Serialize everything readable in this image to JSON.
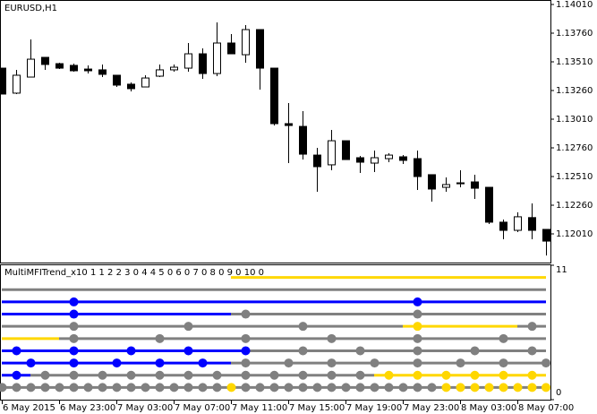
{
  "chart_data": [
    {
      "type": "candlestick",
      "title": "EURUSD,H1",
      "categories": [
        "6 May 2015",
        null,
        null,
        null,
        "6 May 23:00",
        null,
        null,
        null,
        "7 May 03:00",
        null,
        null,
        null,
        "7 May 07:00",
        null,
        null,
        null,
        "7 May 11:00",
        null,
        null,
        null,
        "7 May 15:00",
        null,
        null,
        null,
        "7 May 19:00",
        null,
        null,
        null,
        "7 May 23:00",
        null,
        null,
        null,
        "8 May 03:00",
        null,
        null,
        null,
        "8 May 07:00",
        null,
        null
      ],
      "open": [
        1.13455,
        1.13237,
        1.13377,
        1.13549,
        1.13494,
        1.13479,
        1.13447,
        1.1344,
        1.13393,
        1.13315,
        1.13291,
        1.13385,
        1.1344,
        1.13455,
        1.1358,
        1.13408,
        1.13674,
        1.13572,
        1.13791,
        1.13455,
        1.12971,
        1.12947,
        1.12697,
        1.12612,
        1.12822,
        1.12674,
        1.12627,
        1.12666,
        1.12682,
        1.12666,
        1.12526,
        1.12416,
        1.12447,
        1.12463,
        1.12416,
        1.12112,
        1.12041,
        1.12152,
        1.12049
      ],
      "high": [
        1.13455,
        1.1344,
        1.13705,
        1.13549,
        1.13502,
        1.13494,
        1.13479,
        1.13487,
        1.13393,
        1.1333,
        1.13393,
        1.13487,
        1.13487,
        1.13674,
        1.13627,
        1.13854,
        1.13752,
        1.1383,
        1.13791,
        1.13455,
        1.13151,
        1.1308,
        1.1276,
        1.12916,
        1.12822,
        1.1269,
        1.12737,
        1.12713,
        1.12697,
        1.12737,
        1.12526,
        1.12502,
        1.12565,
        1.12526,
        1.12416,
        1.12135,
        1.12198,
        1.12276,
        1.12049
      ],
      "low": [
        1.13229,
        1.13229,
        1.13377,
        1.1344,
        1.13447,
        1.13424,
        1.13408,
        1.13377,
        1.13291,
        1.13252,
        1.13291,
        1.13377,
        1.13424,
        1.13424,
        1.13362,
        1.13385,
        1.1358,
        1.13502,
        1.13268,
        1.12955,
        1.12627,
        1.12658,
        1.12377,
        1.12565,
        1.12658,
        1.12541,
        1.12549,
        1.12635,
        1.12619,
        1.12393,
        1.12291,
        1.12377,
        1.12416,
        1.12315,
        1.12096,
        1.11963,
        1.12026,
        1.11963,
        1.11822
      ],
      "close": [
        1.13229,
        1.13393,
        1.13533,
        1.13487,
        1.13455,
        1.13432,
        1.13432,
        1.13401,
        1.13307,
        1.13276,
        1.13369,
        1.1344,
        1.13463,
        1.1358,
        1.13408,
        1.13674,
        1.1358,
        1.13791,
        1.13455,
        1.12971,
        1.12955,
        1.12705,
        1.12596,
        1.12822,
        1.12658,
        1.12635,
        1.12674,
        1.12697,
        1.12651,
        1.1251,
        1.12401,
        1.1244,
        1.12455,
        1.12408,
        1.12112,
        1.12041,
        1.12159,
        1.12041,
        1.11947
      ],
      "up_color": "#ffffff",
      "down_color": "#000000",
      "wick_color": "#000000",
      "ylim": [
        1.1176,
        1.14049
      ],
      "yticks": [
        {
          "value": 1.1401,
          "label": "1.14010"
        },
        {
          "value": 1.1376,
          "label": "1.13760"
        },
        {
          "value": 1.1351,
          "label": "1.13510"
        },
        {
          "value": 1.1326,
          "label": "1.13260"
        },
        {
          "value": 1.1301,
          "label": "1.13010"
        },
        {
          "value": 1.1276,
          "label": "1.12760"
        },
        {
          "value": 1.1251,
          "label": "1.12510"
        },
        {
          "value": 1.1226,
          "label": "1.12260"
        },
        {
          "value": 1.1201,
          "label": "1.12010"
        }
      ]
    },
    {
      "type": "levels",
      "title": "MultiMFITrend_x10 1 1 2 2 3 0 4 4 5 0 6 0 7 0 8 0 9 0 10 0",
      "ylim": [
        0,
        11
      ],
      "yticks": [
        11,
        0
      ],
      "rows": [
        {
          "value": 1,
          "segments": [
            {
              "from": 0,
              "to": 38,
              "color": "#808080"
            }
          ],
          "dots": [
            {
              "at": 0,
              "color": "#808080"
            },
            {
              "at": 1,
              "color": "#808080"
            },
            {
              "at": 2,
              "color": "#808080"
            },
            {
              "at": 3,
              "color": "#808080"
            },
            {
              "at": 4,
              "color": "#808080"
            },
            {
              "at": 5,
              "color": "#808080"
            },
            {
              "at": 6,
              "color": "#808080"
            },
            {
              "at": 7,
              "color": "#808080"
            },
            {
              "at": 8,
              "color": "#808080"
            },
            {
              "at": 9,
              "color": "#808080"
            },
            {
              "at": 10,
              "color": "#808080"
            },
            {
              "at": 11,
              "color": "#808080"
            },
            {
              "at": 12,
              "color": "#808080"
            },
            {
              "at": 13,
              "color": "#808080"
            },
            {
              "at": 14,
              "color": "#808080"
            },
            {
              "at": 15,
              "color": "#808080"
            },
            {
              "at": 16,
              "color": "#ffd700"
            },
            {
              "at": 17,
              "color": "#808080"
            },
            {
              "at": 18,
              "color": "#808080"
            },
            {
              "at": 19,
              "color": "#808080"
            },
            {
              "at": 20,
              "color": "#808080"
            },
            {
              "at": 21,
              "color": "#808080"
            },
            {
              "at": 22,
              "color": "#808080"
            },
            {
              "at": 23,
              "color": "#808080"
            },
            {
              "at": 24,
              "color": "#808080"
            },
            {
              "at": 25,
              "color": "#808080"
            },
            {
              "at": 26,
              "color": "#808080"
            },
            {
              "at": 27,
              "color": "#808080"
            },
            {
              "at": 28,
              "color": "#808080"
            },
            {
              "at": 29,
              "color": "#808080"
            },
            {
              "at": 30,
              "color": "#808080"
            },
            {
              "at": 31,
              "color": "#ffd700"
            },
            {
              "at": 32,
              "color": "#ffd700"
            },
            {
              "at": 33,
              "color": "#ffd700"
            },
            {
              "at": 34,
              "color": "#ffd700"
            },
            {
              "at": 35,
              "color": "#ffd700"
            },
            {
              "at": 36,
              "color": "#ffd700"
            },
            {
              "at": 37,
              "color": "#ffd700"
            },
            {
              "at": 38,
              "color": "#ffd700"
            }
          ]
        },
        {
          "value": 2,
          "segments": [
            {
              "from": 0,
              "to": 2,
              "color": "#0000ff"
            },
            {
              "from": 2,
              "to": 26,
              "color": "#808080"
            },
            {
              "from": 26,
              "to": 38,
              "color": "#ffd700"
            }
          ],
          "dots": [
            {
              "at": 1,
              "color": "#0000ff"
            },
            {
              "at": 3,
              "color": "#808080"
            },
            {
              "at": 5,
              "color": "#808080"
            },
            {
              "at": 7,
              "color": "#808080"
            },
            {
              "at": 9,
              "color": "#808080"
            },
            {
              "at": 11,
              "color": "#808080"
            },
            {
              "at": 13,
              "color": "#808080"
            },
            {
              "at": 15,
              "color": "#808080"
            },
            {
              "at": 17,
              "color": "#808080"
            },
            {
              "at": 19,
              "color": "#808080"
            },
            {
              "at": 21,
              "color": "#808080"
            },
            {
              "at": 23,
              "color": "#808080"
            },
            {
              "at": 25,
              "color": "#808080"
            },
            {
              "at": 27,
              "color": "#ffd700"
            },
            {
              "at": 29,
              "color": "#ffd700"
            },
            {
              "at": 31,
              "color": "#ffd700"
            },
            {
              "at": 33,
              "color": "#ffd700"
            },
            {
              "at": 35,
              "color": "#ffd700"
            },
            {
              "at": 37,
              "color": "#ffd700"
            }
          ]
        },
        {
          "value": 3,
          "segments": [
            {
              "from": 0,
              "to": 16,
              "color": "#0000ff"
            },
            {
              "from": 16,
              "to": 38,
              "color": "#808080"
            }
          ],
          "dots": [
            {
              "at": 2,
              "color": "#0000ff"
            },
            {
              "at": 5,
              "color": "#0000ff"
            },
            {
              "at": 8,
              "color": "#0000ff"
            },
            {
              "at": 11,
              "color": "#0000ff"
            },
            {
              "at": 14,
              "color": "#0000ff"
            },
            {
              "at": 17,
              "color": "#808080"
            },
            {
              "at": 20,
              "color": "#808080"
            },
            {
              "at": 23,
              "color": "#808080"
            },
            {
              "at": 26,
              "color": "#808080"
            },
            {
              "at": 29,
              "color": "#808080"
            },
            {
              "at": 32,
              "color": "#808080"
            },
            {
              "at": 35,
              "color": "#808080"
            },
            {
              "at": 38,
              "color": "#808080"
            }
          ]
        },
        {
          "value": 4,
          "segments": [
            {
              "from": 0,
              "to": 17,
              "color": "#0000ff"
            },
            {
              "from": 17,
              "to": 38,
              "color": "#808080"
            }
          ],
          "dots": [
            {
              "at": 1,
              "color": "#0000ff"
            },
            {
              "at": 5,
              "color": "#0000ff"
            },
            {
              "at": 9,
              "color": "#0000ff"
            },
            {
              "at": 13,
              "color": "#0000ff"
            },
            {
              "at": 17,
              "color": "#0000ff"
            },
            {
              "at": 21,
              "color": "#808080"
            },
            {
              "at": 25,
              "color": "#808080"
            },
            {
              "at": 29,
              "color": "#808080"
            },
            {
              "at": 33,
              "color": "#808080"
            },
            {
              "at": 37,
              "color": "#808080"
            }
          ]
        },
        {
          "value": 5,
          "segments": [
            {
              "from": 0,
              "to": 4,
              "color": "#ffd700"
            },
            {
              "from": 4,
              "to": 38,
              "color": "#808080"
            }
          ],
          "dots": [
            {
              "at": 5,
              "color": "#808080"
            },
            {
              "at": 11,
              "color": "#808080"
            },
            {
              "at": 17,
              "color": "#808080"
            },
            {
              "at": 23,
              "color": "#808080"
            },
            {
              "at": 29,
              "color": "#808080"
            },
            {
              "at": 35,
              "color": "#808080"
            }
          ]
        },
        {
          "value": 6,
          "segments": [
            {
              "from": 0,
              "to": 28,
              "color": "#808080"
            },
            {
              "from": 28,
              "to": 36,
              "color": "#ffd700"
            },
            {
              "from": 36,
              "to": 38,
              "color": "#808080"
            }
          ],
          "dots": [
            {
              "at": 5,
              "color": "#808080"
            },
            {
              "at": 13,
              "color": "#808080"
            },
            {
              "at": 21,
              "color": "#808080"
            },
            {
              "at": 29,
              "color": "#ffd700"
            },
            {
              "at": 37,
              "color": "#808080"
            }
          ]
        },
        {
          "value": 7,
          "segments": [
            {
              "from": 0,
              "to": 16,
              "color": "#0000ff"
            },
            {
              "from": 16,
              "to": 38,
              "color": "#808080"
            }
          ],
          "dots": [
            {
              "at": 5,
              "color": "#0000ff"
            },
            {
              "at": 17,
              "color": "#808080"
            },
            {
              "at": 29,
              "color": "#808080"
            }
          ]
        },
        {
          "value": 8,
          "segments": [
            {
              "from": 0,
              "to": 38,
              "color": "#0000ff"
            }
          ],
          "dots": [
            {
              "at": 5,
              "color": "#0000ff"
            },
            {
              "at": 29,
              "color": "#0000ff"
            }
          ]
        },
        {
          "value": 9,
          "segments": [
            {
              "from": 0,
              "to": 38,
              "color": "#808080"
            }
          ],
          "dots": []
        },
        {
          "value": 10,
          "segments": [
            {
              "from": 16,
              "to": 38,
              "color": "#ffd700"
            }
          ],
          "dots": []
        }
      ]
    }
  ]
}
